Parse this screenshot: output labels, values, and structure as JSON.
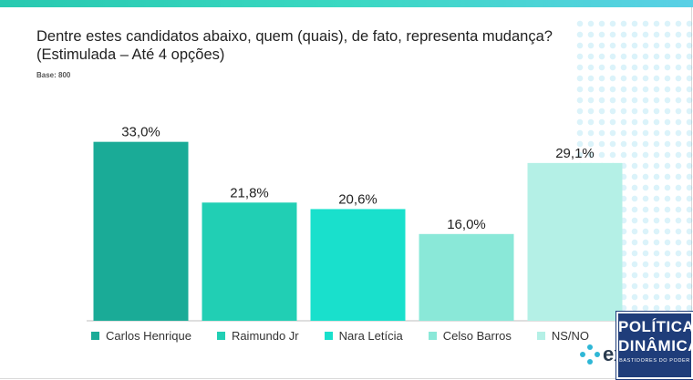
{
  "title": {
    "line1": "Dentre estes candidatos abaixo, quem (quais), de fato, representa mudança?",
    "line2": "(Estimulada – Até 4 opções)"
  },
  "base_label": "Base: 800",
  "logo": {
    "text": "exp",
    "icon": "expertise-logo-icon"
  },
  "watermark": {
    "line1": "POLÍTICA",
    "line2": "DINÂMICA",
    "line3": "BASTIDORES DO PODER"
  },
  "chart_data": {
    "type": "bar",
    "categories": [
      "Carlos Henrique",
      "Raimundo Jr",
      "Nara Letícia",
      "Celso Barros",
      "NS/NO"
    ],
    "values": [
      33.0,
      21.8,
      20.6,
      16.0,
      29.1
    ],
    "value_labels": [
      "33,0%",
      "21,8%",
      "20,6%",
      "16,0%",
      "29,1%"
    ],
    "colors": [
      "#1aab97",
      "#21cfb4",
      "#19e0cc",
      "#8ae8d8",
      "#b4f0e6"
    ],
    "ylim": [
      0,
      40
    ],
    "grid": false,
    "legend_position": "bottom",
    "title": "",
    "xlabel": "",
    "ylabel": ""
  }
}
